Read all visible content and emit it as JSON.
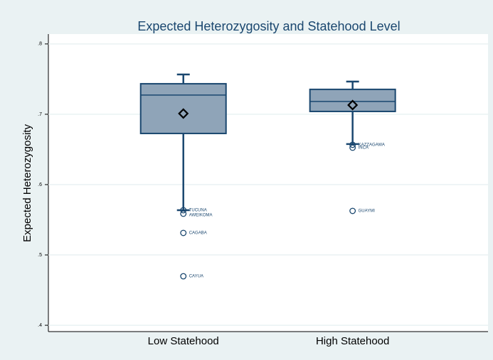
{
  "chart_data": {
    "type": "box",
    "title": "Expected Heterozygosity and Statehood Level",
    "y_label": "Expected Heterozygosity",
    "categories": [
      "Low Statehood",
      "High Statehood"
    ],
    "boxes": [
      {
        "whisker_low": 0.5636,
        "q1": 0.6727,
        "median": 0.7273,
        "q3": 0.7434,
        "whisker_high": 0.7566,
        "mean": 0.701,
        "outliers": [
          {
            "label": "TUCUNA",
            "value": 0.5636
          },
          {
            "label": "AWEIKOMA",
            "value": 0.5586
          },
          {
            "label": "CAGABA",
            "value": 0.5313
          },
          {
            "label": "CAYUA",
            "value": 0.4697
          }
        ]
      },
      {
        "whisker_low": 0.6576,
        "q1": 0.704,
        "median": 0.7182,
        "q3": 0.7354,
        "whisker_high": 0.7465,
        "mean": 0.7131,
        "outliers": [
          {
            "label": "KAZZAGAWA",
            "value": 0.6566
          },
          {
            "label": "INCA",
            "value": 0.6525
          },
          {
            "label": "GUAYMI",
            "value": 0.5626
          }
        ]
      }
    ],
    "color": "#8fa4b8",
    "line_color": "#1a476f",
    "ylim": [
      0.391,
      0.814
    ],
    "yticks": [
      {
        "value": 0.4,
        "label": ".4"
      },
      {
        "value": 0.5,
        "label": ".5"
      },
      {
        "value": 0.6,
        "label": ".6"
      },
      {
        "value": 0.7,
        "label": ".7"
      },
      {
        "value": 0.8,
        "label": ".8"
      }
    ],
    "grid": true
  }
}
